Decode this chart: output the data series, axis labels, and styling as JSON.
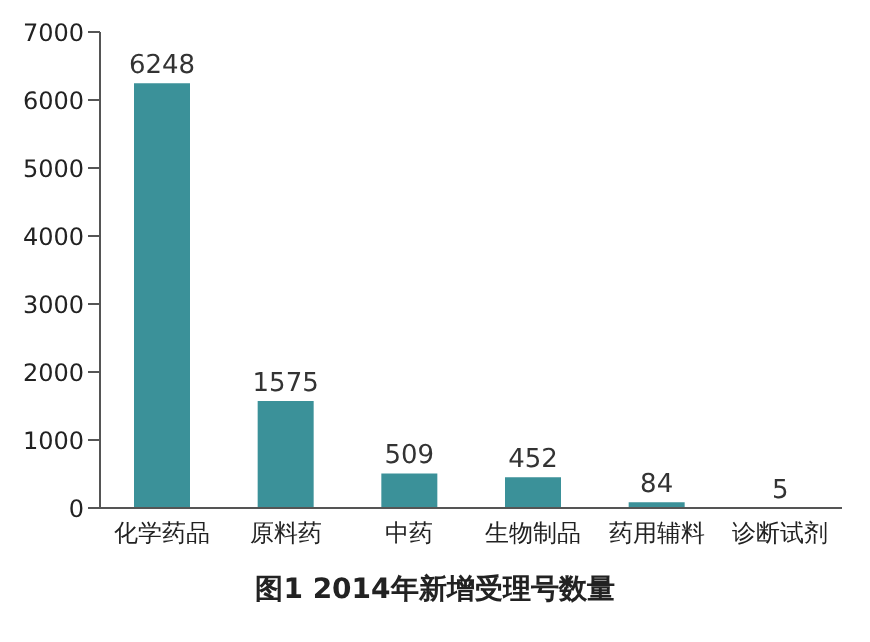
{
  "chart_data": {
    "type": "bar",
    "title": "图1 2014年新增受理号数量",
    "categories": [
      "化学药品",
      "原料药",
      "中药",
      "生物制品",
      "药用辅料",
      "诊断试剂"
    ],
    "values": [
      6248,
      1575,
      509,
      452,
      84,
      5
    ],
    "color": "#3b9199",
    "ylim": [
      0,
      7000
    ],
    "yticks": [
      0,
      1000,
      2000,
      3000,
      4000,
      5000,
      6000,
      7000
    ],
    "data_labels": true,
    "grid": false
  }
}
